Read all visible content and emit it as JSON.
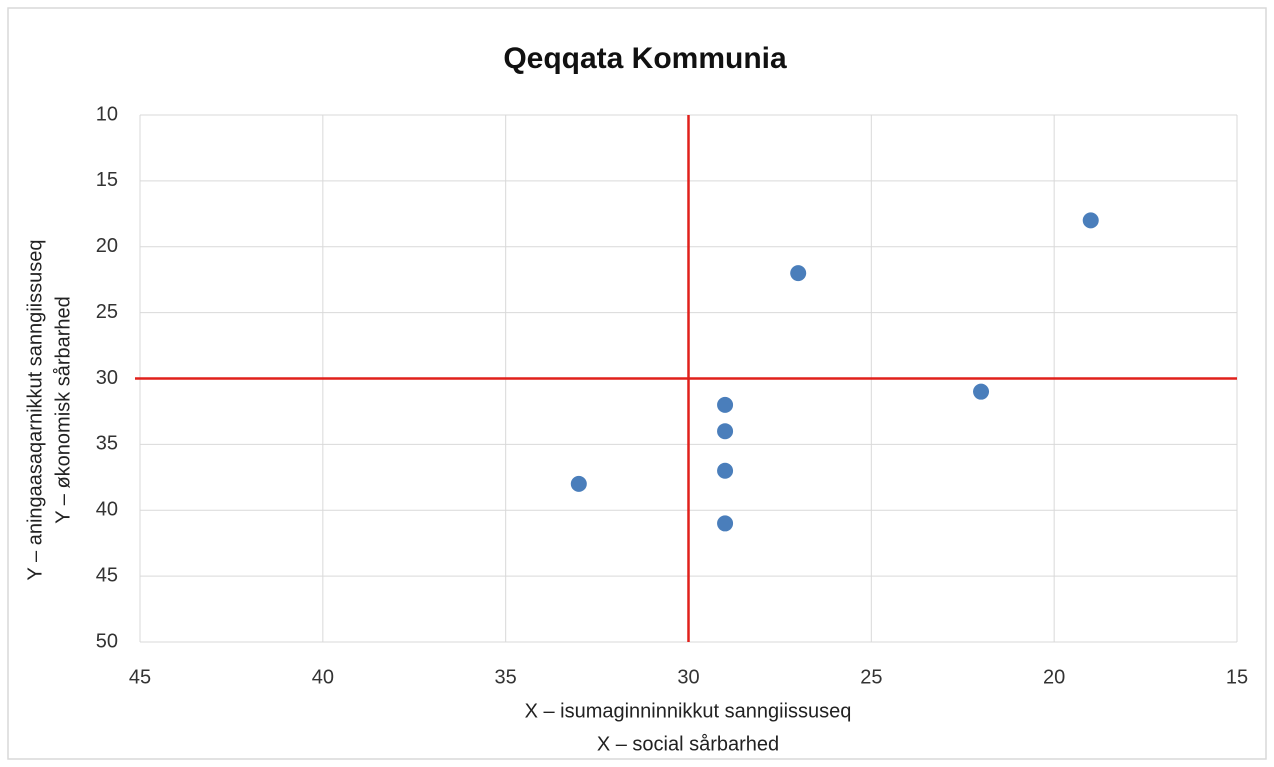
{
  "chart_data": {
    "type": "scatter",
    "title": "Qeqqata Kommunia",
    "x_label": [
      "X – isumaginninnikkut sanngiissuseq",
      "X – social sårbarhed"
    ],
    "y_label": [
      "Y – aningaasaqarnikkut sanngiissuseq",
      "Y – økonomisk sårbarhed"
    ],
    "x": [
      33,
      29,
      29,
      29,
      29,
      27,
      22,
      19
    ],
    "values": [
      38,
      32,
      34,
      37,
      41,
      22,
      31,
      18
    ],
    "color": "#4a7ebb",
    "xlim": [
      45,
      15
    ],
    "ylim": [
      10,
      50
    ],
    "xticks": [
      45,
      40,
      35,
      30,
      25,
      20,
      15
    ],
    "yticks": [
      10,
      15,
      20,
      25,
      30,
      35,
      40,
      45,
      50
    ],
    "grid": true,
    "reference_lines": {
      "x": 30,
      "y": 30,
      "color": "#e0201b"
    }
  }
}
